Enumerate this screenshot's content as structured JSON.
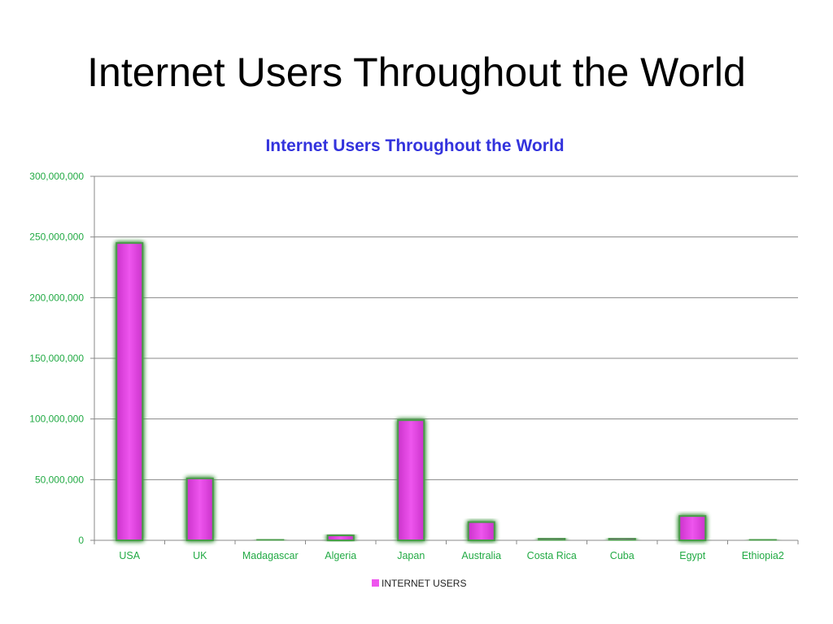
{
  "slide": {
    "title": "Internet Users Throughout the World"
  },
  "colors": {
    "title_text": "#000000",
    "chart_title": "#3333dd",
    "axis_labels": "#22aa44",
    "bar_fill": "#ee55ee",
    "bar_glow": "#4a9a4a",
    "gridline": "#888888",
    "legend_text": "#222222"
  },
  "chart_data": {
    "type": "bar",
    "title": "Internet Users Throughout the World",
    "xlabel": "",
    "ylabel": "",
    "ylim": [
      0,
      300000000
    ],
    "yticks": [
      0,
      50000000,
      100000000,
      150000000,
      200000000,
      250000000,
      300000000
    ],
    "ytick_labels": [
      "0",
      "50,000,000",
      "100,000,000",
      "150,000,000",
      "200,000,000",
      "250,000,000",
      "300,000,000"
    ],
    "categories": [
      "USA",
      "UK",
      "Madagascar",
      "Algeria",
      "Japan",
      "Australia",
      "Costa Rica",
      "Cuba",
      "Egypt",
      "Ethiopia2"
    ],
    "series": [
      {
        "name": "INTERNET USERS",
        "values": [
          245000000,
          51000000,
          300000,
          4000000,
          99000000,
          15000000,
          1500000,
          1600000,
          20000000,
          500000
        ]
      }
    ],
    "grid": true,
    "legend": "bottom"
  }
}
